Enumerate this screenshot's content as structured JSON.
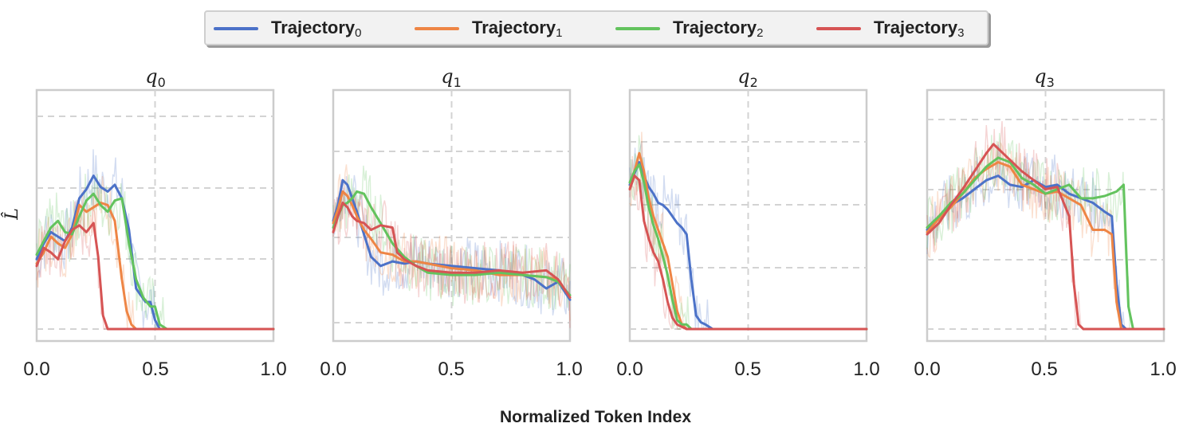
{
  "chart_data": {
    "type": "line",
    "xlabel": "Normalized Token Index",
    "ylabel": "L̂",
    "xlim": [
      0,
      1
    ],
    "xticks": [
      "0.0",
      "0.5",
      "1.0"
    ],
    "ylim": [
      0,
      1
    ],
    "legend": {
      "placement": "top-center",
      "entries": [
        {
          "base": "Trajectory",
          "sub": "0",
          "color": "#4c72c8"
        },
        {
          "base": "Trajectory",
          "sub": "1",
          "color": "#ee8545"
        },
        {
          "base": "Trajectory",
          "sub": "2",
          "color": "#63c35e"
        },
        {
          "base": "Trajectory",
          "sub": "3",
          "color": "#d65454"
        }
      ]
    },
    "panels": [
      {
        "title_base": "q",
        "title_sub": "0",
        "series": [
          {
            "name": "Trajectory0",
            "x": [
              0,
              0.03,
              0.06,
              0.09,
              0.12,
              0.15,
              0.18,
              0.21,
              0.24,
              0.27,
              0.3,
              0.33,
              0.36,
              0.39,
              0.42,
              0.44,
              0.46,
              0.48,
              0.5,
              0.52,
              0.55,
              1.0
            ],
            "y": [
              0.31,
              0.38,
              0.43,
              0.41,
              0.39,
              0.45,
              0.58,
              0.62,
              0.68,
              0.63,
              0.61,
              0.64,
              0.58,
              0.44,
              0.18,
              0.15,
              0.12,
              0.12,
              0.04,
              0.0,
              0.0,
              0.0
            ]
          },
          {
            "name": "Trajectory1",
            "x": [
              0,
              0.03,
              0.06,
              0.09,
              0.12,
              0.15,
              0.18,
              0.21,
              0.24,
              0.27,
              0.3,
              0.33,
              0.36,
              0.38,
              0.4,
              0.42,
              1.0
            ],
            "y": [
              0.29,
              0.34,
              0.41,
              0.38,
              0.36,
              0.42,
              0.55,
              0.52,
              0.54,
              0.56,
              0.55,
              0.48,
              0.22,
              0.08,
              0.02,
              0.0,
              0.0
            ]
          },
          {
            "name": "Trajectory2",
            "x": [
              0,
              0.03,
              0.06,
              0.09,
              0.12,
              0.15,
              0.18,
              0.21,
              0.24,
              0.27,
              0.3,
              0.33,
              0.36,
              0.39,
              0.42,
              0.45,
              0.48,
              0.5,
              0.52,
              0.55,
              1.0
            ],
            "y": [
              0.33,
              0.39,
              0.45,
              0.48,
              0.43,
              0.42,
              0.5,
              0.57,
              0.6,
              0.55,
              0.52,
              0.57,
              0.58,
              0.38,
              0.22,
              0.14,
              0.1,
              0.1,
              0.02,
              0.0,
              0.0
            ]
          },
          {
            "name": "Trajectory3",
            "x": [
              0,
              0.03,
              0.06,
              0.09,
              0.12,
              0.15,
              0.18,
              0.21,
              0.24,
              0.26,
              0.28,
              0.3,
              0.32,
              1.0
            ],
            "y": [
              0.28,
              0.36,
              0.34,
              0.31,
              0.39,
              0.44,
              0.46,
              0.43,
              0.47,
              0.32,
              0.06,
              0.0,
              0.0,
              0.0
            ]
          }
        ]
      },
      {
        "title_base": "q",
        "title_sub": "1",
        "series": [
          {
            "name": "Trajectory0",
            "x": [
              0,
              0.02,
              0.04,
              0.06,
              0.08,
              0.1,
              0.13,
              0.16,
              0.2,
              0.25,
              0.3,
              0.35,
              0.4,
              0.5,
              0.6,
              0.7,
              0.8,
              0.85,
              0.9,
              0.95,
              1.0
            ],
            "y": [
              0.48,
              0.55,
              0.66,
              0.64,
              0.58,
              0.52,
              0.42,
              0.32,
              0.28,
              0.3,
              0.29,
              0.3,
              0.29,
              0.28,
              0.27,
              0.26,
              0.24,
              0.22,
              0.18,
              0.21,
              0.13
            ]
          },
          {
            "name": "Trajectory1",
            "x": [
              0,
              0.02,
              0.04,
              0.06,
              0.08,
              0.1,
              0.13,
              0.16,
              0.2,
              0.25,
              0.3,
              0.35,
              0.4,
              0.5,
              0.6,
              0.7,
              0.8,
              0.9,
              0.95,
              1.0
            ],
            "y": [
              0.47,
              0.53,
              0.61,
              0.59,
              0.55,
              0.5,
              0.44,
              0.4,
              0.34,
              0.33,
              0.3,
              0.3,
              0.29,
              0.27,
              0.26,
              0.24,
              0.24,
              0.23,
              0.22,
              0.14
            ]
          },
          {
            "name": "Trajectory2",
            "x": [
              0,
              0.02,
              0.04,
              0.06,
              0.08,
              0.1,
              0.13,
              0.16,
              0.2,
              0.25,
              0.3,
              0.35,
              0.4,
              0.5,
              0.6,
              0.7,
              0.8,
              0.9,
              0.95,
              1.0
            ],
            "y": [
              0.45,
              0.5,
              0.55,
              0.56,
              0.58,
              0.61,
              0.6,
              0.54,
              0.47,
              0.38,
              0.32,
              0.28,
              0.25,
              0.24,
              0.24,
              0.25,
              0.24,
              0.23,
              0.21,
              0.15
            ]
          },
          {
            "name": "Trajectory3",
            "x": [
              0,
              0.02,
              0.04,
              0.06,
              0.08,
              0.1,
              0.13,
              0.16,
              0.2,
              0.25,
              0.27,
              0.3,
              0.35,
              0.4,
              0.5,
              0.6,
              0.7,
              0.8,
              0.9,
              0.95,
              1.0
            ],
            "y": [
              0.43,
              0.5,
              0.56,
              0.54,
              0.5,
              0.48,
              0.47,
              0.44,
              0.46,
              0.45,
              0.34,
              0.31,
              0.28,
              0.26,
              0.25,
              0.25,
              0.26,
              0.25,
              0.26,
              0.22,
              0.14
            ]
          }
        ]
      },
      {
        "title_base": "q",
        "title_sub": "2",
        "series": [
          {
            "name": "Trajectory0",
            "x": [
              0,
              0.02,
              0.04,
              0.06,
              0.08,
              0.1,
              0.12,
              0.14,
              0.16,
              0.18,
              0.2,
              0.22,
              0.24,
              0.26,
              0.28,
              0.3,
              0.32,
              0.35,
              1.0
            ],
            "y": [
              0.64,
              0.69,
              0.74,
              0.68,
              0.63,
              0.6,
              0.56,
              0.55,
              0.53,
              0.5,
              0.47,
              0.45,
              0.42,
              0.22,
              0.06,
              0.03,
              0.02,
              0.0,
              0.0
            ]
          },
          {
            "name": "Trajectory1",
            "x": [
              0,
              0.02,
              0.04,
              0.06,
              0.08,
              0.1,
              0.12,
              0.14,
              0.16,
              0.18,
              0.2,
              0.22,
              0.24,
              0.26,
              1.0
            ],
            "y": [
              0.62,
              0.7,
              0.78,
              0.7,
              0.58,
              0.5,
              0.44,
              0.38,
              0.32,
              0.2,
              0.08,
              0.02,
              0.0,
              0.0,
              0.0
            ]
          },
          {
            "name": "Trajectory2",
            "x": [
              0,
              0.02,
              0.04,
              0.06,
              0.08,
              0.1,
              0.12,
              0.14,
              0.16,
              0.18,
              0.2,
              0.22,
              0.24,
              0.26,
              1.0
            ],
            "y": [
              0.65,
              0.7,
              0.73,
              0.65,
              0.54,
              0.46,
              0.4,
              0.32,
              0.24,
              0.13,
              0.04,
              0.02,
              0.02,
              0.0,
              0.0
            ]
          },
          {
            "name": "Trajectory3",
            "x": [
              0,
              0.02,
              0.04,
              0.06,
              0.08,
              0.1,
              0.12,
              0.14,
              0.16,
              0.18,
              0.2,
              0.22,
              0.24,
              1.0
            ],
            "y": [
              0.62,
              0.68,
              0.66,
              0.48,
              0.4,
              0.34,
              0.3,
              0.22,
              0.12,
              0.05,
              0.02,
              0.01,
              0.0,
              0.0
            ]
          }
        ]
      },
      {
        "title_base": "q",
        "title_sub": "3",
        "series": [
          {
            "name": "Trajectory0",
            "x": [
              0,
              0.05,
              0.1,
              0.15,
              0.2,
              0.25,
              0.3,
              0.35,
              0.4,
              0.45,
              0.5,
              0.55,
              0.6,
              0.65,
              0.7,
              0.75,
              0.78,
              0.8,
              0.82,
              0.84,
              1.0
            ],
            "y": [
              0.44,
              0.5,
              0.55,
              0.58,
              0.62,
              0.66,
              0.68,
              0.64,
              0.63,
              0.66,
              0.63,
              0.64,
              0.6,
              0.58,
              0.56,
              0.52,
              0.5,
              0.2,
              0.02,
              0.0,
              0.0
            ]
          },
          {
            "name": "Trajectory1",
            "x": [
              0,
              0.05,
              0.1,
              0.15,
              0.2,
              0.25,
              0.3,
              0.35,
              0.4,
              0.45,
              0.5,
              0.55,
              0.6,
              0.65,
              0.7,
              0.75,
              0.78,
              0.8,
              0.82,
              1.0
            ],
            "y": [
              0.43,
              0.49,
              0.54,
              0.6,
              0.67,
              0.71,
              0.74,
              0.72,
              0.64,
              0.62,
              0.6,
              0.61,
              0.58,
              0.55,
              0.44,
              0.44,
              0.42,
              0.12,
              0.0,
              0.0
            ]
          },
          {
            "name": "Trajectory2",
            "x": [
              0,
              0.05,
              0.1,
              0.15,
              0.2,
              0.25,
              0.3,
              0.35,
              0.4,
              0.45,
              0.5,
              0.55,
              0.6,
              0.65,
              0.7,
              0.75,
              0.8,
              0.83,
              0.85,
              0.87,
              1.0
            ],
            "y": [
              0.45,
              0.5,
              0.56,
              0.6,
              0.66,
              0.72,
              0.76,
              0.74,
              0.67,
              0.64,
              0.6,
              0.62,
              0.64,
              0.58,
              0.58,
              0.59,
              0.61,
              0.64,
              0.1,
              0.0,
              0.0
            ]
          },
          {
            "name": "Trajectory3",
            "x": [
              0,
              0.05,
              0.1,
              0.15,
              0.2,
              0.25,
              0.28,
              0.3,
              0.35,
              0.4,
              0.45,
              0.5,
              0.55,
              0.6,
              0.62,
              0.64,
              0.66,
              1.0
            ],
            "y": [
              0.42,
              0.47,
              0.55,
              0.62,
              0.7,
              0.78,
              0.82,
              0.8,
              0.75,
              0.7,
              0.66,
              0.62,
              0.63,
              0.5,
              0.2,
              0.02,
              0.0,
              0.0
            ]
          }
        ]
      }
    ]
  }
}
